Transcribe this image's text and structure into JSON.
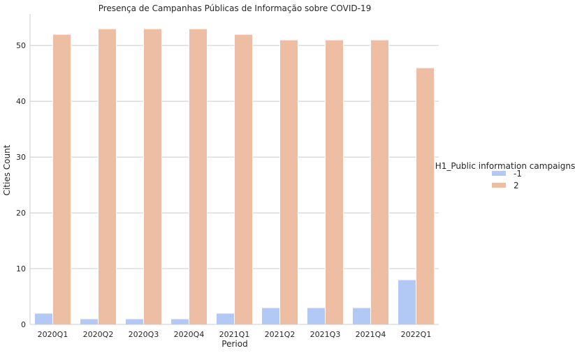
{
  "chart_data": {
    "type": "bar",
    "title": "Presença de Campanhas Públicas de Informação sobre COVID-19",
    "xlabel": "Period",
    "ylabel": "Cities Count",
    "categories": [
      "2020Q1",
      "2020Q2",
      "2020Q3",
      "2020Q4",
      "2021Q1",
      "2021Q2",
      "2021Q3",
      "2021Q4",
      "2022Q1"
    ],
    "series": [
      {
        "name": "-1",
        "values": [
          2,
          1,
          1,
          1,
          2,
          3,
          3,
          3,
          8
        ],
        "color": "#b3c9f5"
      },
      {
        "name": "2",
        "values": [
          52,
          53,
          53,
          53,
          52,
          51,
          51,
          51,
          46
        ],
        "color": "#edbda4"
      }
    ],
    "ylim": [
      0,
      55.65
    ],
    "yticks": [
      0,
      10,
      20,
      30,
      40,
      50
    ],
    "grid": true,
    "legend": {
      "title": "H1_Public information campaigns",
      "placement": "right"
    }
  }
}
